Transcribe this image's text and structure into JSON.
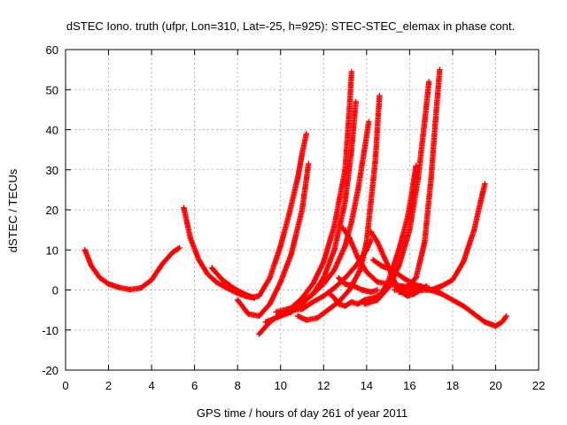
{
  "chart_data": {
    "type": "scatter",
    "title": "dSTEC Iono. truth (ufpr, Lon=310, Lat=-25, h=925): STEC-STEC_elemax in phase cont.",
    "xlabel": "GPS time / hours of day 261 of year 2011",
    "ylabel": "dSTEC  / TECUs",
    "xlim": [
      0,
      22
    ],
    "ylim": [
      -20,
      60
    ],
    "xticks": [
      "0",
      "2",
      "4",
      "6",
      "8",
      "10",
      "12",
      "14",
      "16",
      "18",
      "20",
      "22"
    ],
    "yticks": [
      "-20",
      "-10",
      "0",
      "10",
      "20",
      "30",
      "40",
      "50",
      "60"
    ],
    "grid": true,
    "marker": "plus",
    "color": "#ff0000",
    "series": [
      {
        "x": [
          0.9,
          1.2,
          1.6,
          2.0,
          2.5,
          3.0,
          3.5,
          4.0,
          4.5,
          5.0,
          5.3
        ],
        "y": [
          10,
          6,
          3,
          1.5,
          0.6,
          0.1,
          0.5,
          2.5,
          6.5,
          9.5,
          10.5
        ]
      },
      {
        "x": [
          5.5,
          5.8,
          6.2,
          6.6,
          7.0,
          7.5,
          8.0,
          8.4,
          8.8
        ],
        "y": [
          20.5,
          13,
          7.5,
          4,
          2,
          0.5,
          -0.8,
          -1.6,
          -2
        ]
      },
      {
        "x": [
          6.8,
          7.3,
          7.8,
          8.3,
          8.7,
          9.0,
          9.5,
          10.0,
          10.4,
          10.8,
          11.0,
          11.2
        ],
        "y": [
          5.5,
          2.5,
          0.5,
          -1,
          -1.8,
          -1.5,
          3,
          11,
          19,
          28,
          34,
          39
        ]
      },
      {
        "x": [
          8.0,
          8.5,
          9.0,
          9.5,
          10.0,
          10.5,
          11.0,
          11.3
        ],
        "y": [
          -2.5,
          -6,
          -6.5,
          -3.5,
          2,
          9,
          20,
          31.5
        ]
      },
      {
        "x": [
          9.0,
          9.5,
          10.0,
          10.5,
          11.0,
          11.5,
          12.0,
          12.5,
          13.0,
          13.2,
          13.3
        ],
        "y": [
          -11,
          -8,
          -6,
          -4.5,
          -2,
          1.5,
          7,
          16,
          30,
          45,
          54.5
        ]
      },
      {
        "x": [
          9.3,
          10.0,
          10.5,
          11.0,
          11.5,
          12.0,
          12.5,
          13.0,
          13.3,
          13.5
        ],
        "y": [
          -8,
          -6.5,
          -5.5,
          -3.5,
          -1,
          3,
          10,
          22,
          35,
          47
        ]
      },
      {
        "x": [
          9.8,
          10.5,
          11.0,
          11.5,
          12.0,
          12.5,
          13.0,
          13.3,
          13.6,
          13.9,
          14.1
        ],
        "y": [
          -5.5,
          -4.5,
          -3,
          -1,
          1.5,
          5,
          11,
          17,
          25,
          35,
          42
        ]
      },
      {
        "x": [
          10.5,
          11.0,
          11.5,
          12.0,
          12.5,
          13.0,
          13.5,
          14.0,
          14.2
        ],
        "y": [
          -5,
          -4.8,
          -3,
          -1.5,
          0.5,
          3,
          6,
          10,
          12.5
        ]
      },
      {
        "x": [
          10.8,
          11.2,
          11.7,
          12.2,
          12.7,
          13.2,
          13.7,
          14.0,
          14.4,
          14.6
        ],
        "y": [
          -6.5,
          -7.5,
          -7,
          -5,
          -3,
          0,
          5,
          12,
          32,
          48.5
        ]
      },
      {
        "x": [
          12.3,
          12.5,
          12.7,
          13.0,
          13.3,
          13.6,
          13.9,
          14.3,
          14.7
        ],
        "y": [
          -1,
          -2,
          -3.5,
          -4,
          -3,
          -3.5,
          -2.5,
          -2,
          -1
        ]
      },
      {
        "x": [
          12.7,
          13.0,
          13.4,
          13.8,
          14.2,
          14.5
        ],
        "y": [
          3,
          1.5,
          1,
          0,
          -0.5,
          0
        ]
      },
      {
        "x": [
          12.9,
          13.2,
          13.6,
          14.0,
          14.5,
          15.0,
          15.6,
          16.2,
          16.6
        ],
        "y": [
          15.5,
          13,
          8,
          4.5,
          2,
          1.5,
          1,
          0.5,
          0
        ]
      },
      {
        "x": [
          14.2,
          14.5,
          15.0,
          15.3,
          15.6,
          15.9,
          16.2,
          16.5,
          16.8
        ],
        "y": [
          14.5,
          12,
          6,
          2,
          -0.5,
          -1.5,
          -1,
          0,
          1
        ]
      },
      {
        "x": [
          14.3,
          14.7,
          15.2,
          15.7,
          16.2,
          16.6,
          17.0,
          17.4
        ],
        "y": [
          7.5,
          6,
          5,
          3,
          1.5,
          0.5,
          0,
          -0.5
        ]
      },
      {
        "x": [
          13.9,
          14.5,
          15.0,
          15.5,
          15.9,
          16.1,
          16.3
        ],
        "y": [
          -3.5,
          -2.5,
          2,
          10,
          18,
          24,
          31
        ]
      },
      {
        "x": [
          14.0,
          14.5,
          15.0,
          15.5,
          16.0,
          16.4,
          16.7,
          16.9
        ],
        "y": [
          -3,
          -2.5,
          0.5,
          6,
          15,
          28,
          42,
          52
        ]
      },
      {
        "x": [
          15.3,
          15.8,
          16.3,
          16.7,
          17.0,
          17.2,
          17.4
        ],
        "y": [
          0,
          0.5,
          3,
          12,
          28,
          42,
          55
        ]
      },
      {
        "x": [
          15.5,
          16.0,
          16.5,
          17.0,
          17.5,
          18.0,
          18.5,
          19.0,
          19.3,
          19.5
        ],
        "y": [
          -0.5,
          -0.5,
          0,
          0,
          1,
          2.5,
          7,
          15,
          22,
          26.5
        ]
      },
      {
        "x": [
          16.0,
          16.5,
          17.0,
          17.5,
          18.0,
          18.5,
          19.0,
          19.5,
          20.0,
          20.3,
          20.5
        ],
        "y": [
          1.5,
          1,
          0,
          -1,
          -2.5,
          -4,
          -6,
          -8,
          -9,
          -8,
          -6.5
        ]
      }
    ]
  }
}
